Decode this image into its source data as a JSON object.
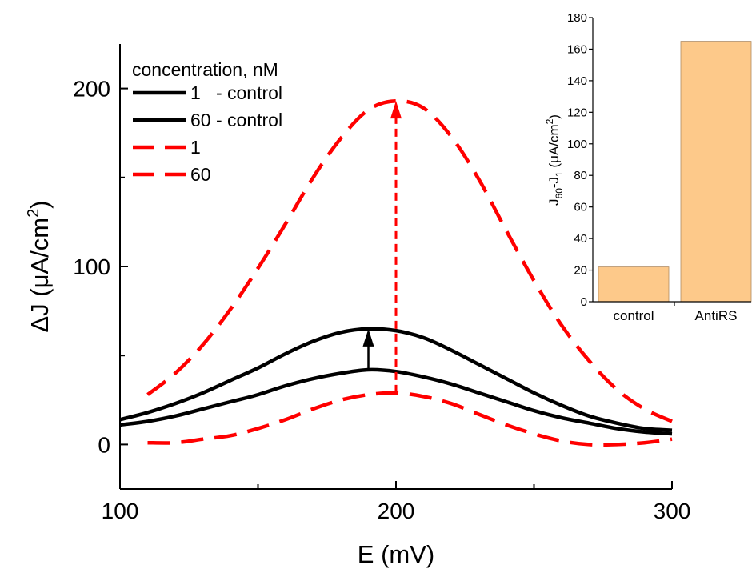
{
  "chart_data": [
    {
      "type": "line",
      "xlabel": "E (mV)",
      "ylabel_main": "ΔJ (μA/cm",
      "ylabel_sup": "2",
      "ylabel_end": ")",
      "xlim": [
        100,
        300
      ],
      "ylim": [
        -25,
        225
      ],
      "xticks": [
        100,
        200,
        300
      ],
      "yticks": [
        0,
        100,
        200
      ],
      "legend": {
        "title": "concentration, nM",
        "placement": "top-left",
        "entries": [
          "1   - control",
          "60 - control",
          "1",
          "60"
        ]
      },
      "series": [
        {
          "name": "1   - control",
          "color": "#000000",
          "style": "solid",
          "x": [
            100,
            110,
            120,
            130,
            140,
            150,
            160,
            170,
            180,
            190,
            200,
            210,
            220,
            230,
            240,
            250,
            260,
            270,
            280,
            290,
            300
          ],
          "y": [
            11,
            13,
            16,
            20,
            24,
            28,
            33,
            37,
            40,
            42,
            41,
            38,
            34,
            29,
            24,
            19,
            15,
            12,
            9,
            7,
            6
          ]
        },
        {
          "name": "60 - control",
          "color": "#000000",
          "style": "solid",
          "x": [
            100,
            110,
            120,
            130,
            140,
            150,
            160,
            170,
            180,
            190,
            200,
            210,
            220,
            230,
            240,
            250,
            260,
            270,
            280,
            290,
            300
          ],
          "y": [
            14,
            18,
            23,
            29,
            36,
            43,
            51,
            58,
            63,
            65,
            64,
            60,
            53,
            45,
            37,
            29,
            22,
            16,
            12,
            9,
            8
          ]
        },
        {
          "name": "1",
          "color": "#ff0000",
          "style": "dashed",
          "x": [
            110,
            120,
            130,
            140,
            150,
            160,
            170,
            180,
            190,
            200,
            210,
            220,
            230,
            240,
            250,
            260,
            270,
            280,
            290,
            300
          ],
          "y": [
            1,
            1,
            3,
            5,
            9,
            14,
            20,
            25,
            28,
            29,
            27,
            23,
            17,
            11,
            6,
            2,
            0,
            0,
            1,
            3
          ]
        },
        {
          "name": "60",
          "color": "#ff0000",
          "style": "dashed",
          "x": [
            110,
            120,
            130,
            140,
            150,
            160,
            170,
            180,
            190,
            200,
            210,
            220,
            230,
            240,
            250,
            260,
            270,
            280,
            290,
            300
          ],
          "y": [
            28,
            40,
            56,
            76,
            99,
            124,
            150,
            172,
            188,
            193,
            189,
            173,
            149,
            120,
            92,
            67,
            47,
            31,
            20,
            13
          ]
        }
      ],
      "annotations": [
        {
          "type": "arrow",
          "x": 190,
          "y_from": 42,
          "y_to": 65,
          "color": "#000000",
          "style": "solid"
        },
        {
          "type": "arrow",
          "x": 200,
          "y_from": 29,
          "y_to": 193,
          "color": "#ff0000",
          "style": "dashed"
        }
      ]
    },
    {
      "type": "bar",
      "ylabel_parts": [
        "J",
        "60",
        "-J",
        "1",
        " (μA/cm",
        "2",
        ")"
      ],
      "categories": [
        "control",
        "AntiRS"
      ],
      "values": [
        22,
        165
      ],
      "ylim": [
        0,
        180
      ],
      "yticks": [
        0,
        20,
        40,
        60,
        80,
        100,
        120,
        140,
        160,
        180
      ],
      "bar_color": "#fdc98a",
      "bar_edge": "#b08a60",
      "placement": "top-right"
    }
  ]
}
